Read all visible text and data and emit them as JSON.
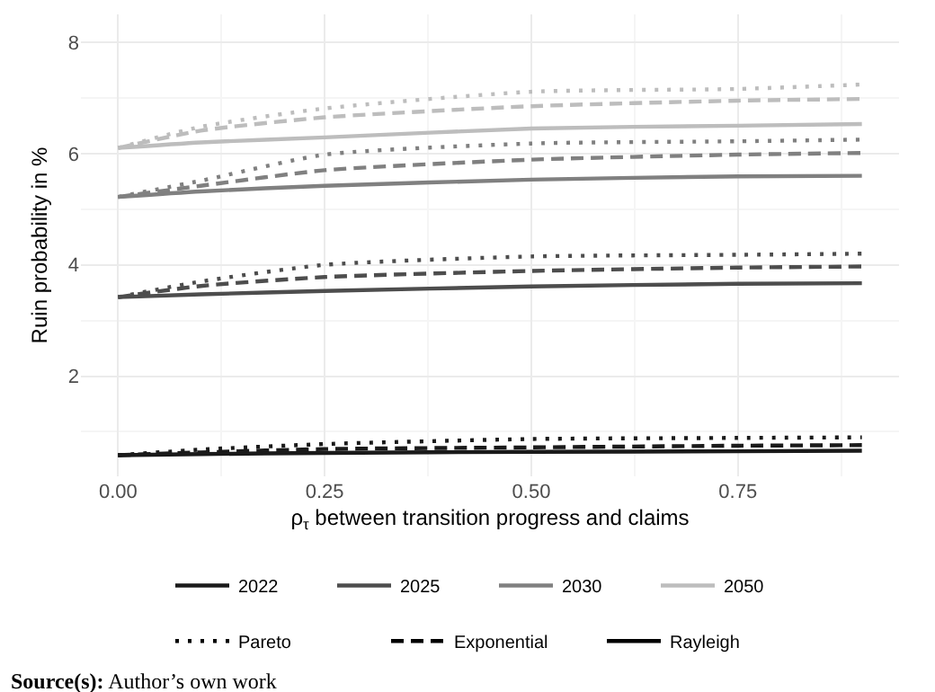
{
  "chart_data": {
    "type": "line",
    "xlabel": "ρ$_{τ}$ between transition progress and claims",
    "ylabel": "Ruin probability in %",
    "x": [
      0,
      0.1,
      0.25,
      0.5,
      0.75,
      0.9
    ],
    "xlim": [
      -0.045,
      0.945
    ],
    "xticks": [
      {
        "value": 0,
        "label": "0.00"
      },
      0.25,
      {
        "value": 0.5,
        "label": "0.50"
      },
      0.75
    ],
    "ylim": [
      0.2,
      8.5
    ],
    "yticks": [
      2,
      4,
      6,
      8
    ],
    "grid": true,
    "legend": "bottom",
    "marker": "none",
    "series": [
      {
        "name": "2022",
        "color": "#1a1a1a",
        "line_style": "solid",
        "values": [
          0.58,
          0.6,
          0.62,
          0.64,
          0.65,
          0.66
        ]
      },
      {
        "color": "#1a1a1a",
        "line_style": "dashed",
        "values": [
          0.58,
          0.63,
          0.69,
          0.72,
          0.75,
          0.76
        ]
      },
      {
        "color": "#1a1a1a",
        "line_style": "dotted",
        "values": [
          0.58,
          0.68,
          0.78,
          0.87,
          0.89,
          0.9
        ]
      },
      {
        "name": "2025",
        "color": "#4d4d4d",
        "line_style": "solid",
        "values": [
          3.42,
          3.47,
          3.53,
          3.61,
          3.66,
          3.67
        ]
      },
      {
        "color": "#4d4d4d",
        "line_style": "dashed",
        "values": [
          3.42,
          3.62,
          3.78,
          3.89,
          3.95,
          3.97
        ]
      },
      {
        "color": "#4d4d4d",
        "line_style": "dotted",
        "values": [
          3.42,
          3.7,
          4.0,
          4.15,
          4.18,
          4.2
        ]
      },
      {
        "name": "2030",
        "color": "#808080",
        "line_style": "solid",
        "values": [
          5.22,
          5.32,
          5.42,
          5.53,
          5.59,
          5.6
        ]
      },
      {
        "color": "#808080",
        "line_style": "dashed",
        "values": [
          5.22,
          5.42,
          5.7,
          5.89,
          5.98,
          6.01
        ]
      },
      {
        "color": "#808080",
        "line_style": "dotted",
        "values": [
          5.22,
          5.51,
          5.98,
          6.18,
          6.22,
          6.25
        ]
      },
      {
        "name": "2050",
        "color": "#bdbdbd",
        "line_style": "solid",
        "values": [
          6.1,
          6.2,
          6.29,
          6.45,
          6.5,
          6.53
        ]
      },
      {
        "color": "#bdbdbd",
        "line_style": "dashed",
        "values": [
          6.1,
          6.41,
          6.65,
          6.85,
          6.95,
          6.98
        ]
      },
      {
        "color": "#bdbdbd",
        "line_style": "dotted",
        "values": [
          6.1,
          6.48,
          6.81,
          7.11,
          7.16,
          7.24
        ]
      },
      {
        "name": "Pareto",
        "color": "#000000",
        "line_style": "dotted",
        "values": [
          null,
          null,
          null,
          null,
          null,
          null
        ]
      },
      {
        "name": "Exponential",
        "color": "#000000",
        "line_style": "dashed",
        "values": [
          null,
          null,
          null,
          null,
          null,
          null
        ]
      },
      {
        "name": "Rayleigh",
        "color": "#000000",
        "line_style": "solid",
        "values": [
          null,
          null,
          null,
          null,
          null,
          null
        ]
      }
    ],
    "annotations": [
      "Source(s): Author’s own work"
    ]
  }
}
